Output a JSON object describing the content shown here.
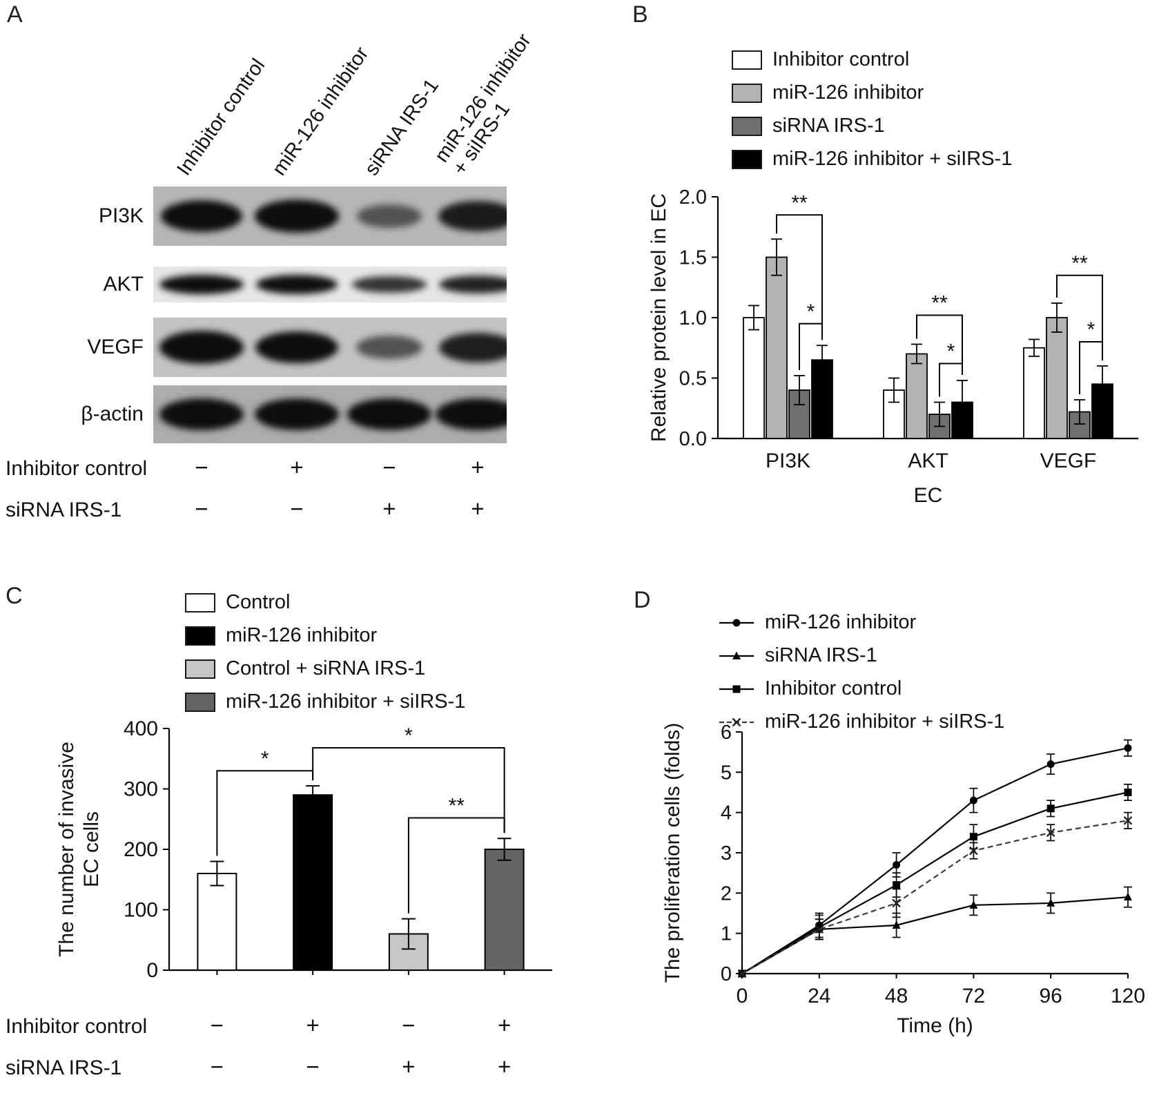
{
  "panels": {
    "A": {
      "label": "A",
      "lane_labels": [
        [
          "Inhibitor control"
        ],
        [
          "miR-126 inhibitor"
        ],
        [
          "siRNA IRS-1"
        ],
        [
          "miR-126 inhibitor",
          "+ siIRS-1"
        ]
      ],
      "blot_rows": [
        {
          "label": "PI3K",
          "bg": "#b6b6b6",
          "strip_h": 86,
          "bands": [
            0.92,
            1.0,
            0.38,
            0.82
          ]
        },
        {
          "label": "AKT",
          "bg": "#e6e6e6",
          "strip_h": 52,
          "bands": [
            1.0,
            0.92,
            0.7,
            0.8
          ]
        },
        {
          "label": "VEGF",
          "bg": "#c3c3c3",
          "strip_h": 86,
          "bands": [
            1.0,
            0.95,
            0.42,
            0.8
          ]
        },
        {
          "label": "β-actin",
          "bg": "#acacac",
          "strip_h": 84,
          "bands": [
            1.0,
            1.0,
            0.98,
            1.0
          ]
        }
      ],
      "condition_rows": [
        {
          "label": "Inhibitor control",
          "signs": [
            "−",
            "+",
            "−",
            "+"
          ]
        },
        {
          "label": "siRNA IRS-1",
          "signs": [
            "−",
            "−",
            "+",
            "+"
          ]
        }
      ]
    },
    "B": {
      "label": "B"
    },
    "C": {
      "label": "C"
    },
    "D": {
      "label": "D"
    }
  },
  "chart_data": [
    {
      "panel": "B",
      "type": "bar",
      "ylabel": "Relative protein level in EC",
      "xlabel": "EC",
      "ylim": [
        0,
        2.0
      ],
      "yticks": [
        0,
        0.5,
        1.0,
        1.5,
        2.0
      ],
      "categories": [
        "PI3K",
        "AKT",
        "VEGF"
      ],
      "legend_position": "top",
      "series": [
        {
          "name": "Inhibitor control",
          "color": "#ffffff",
          "values": [
            1.0,
            0.4,
            0.75
          ],
          "errors": [
            0.1,
            0.1,
            0.07
          ]
        },
        {
          "name": "miR-126 inhibitor",
          "color": "#b3b3b3",
          "values": [
            1.5,
            0.7,
            1.0
          ],
          "errors": [
            0.15,
            0.08,
            0.12
          ]
        },
        {
          "name": "siRNA IRS-1",
          "color": "#6f6f6f",
          "values": [
            0.4,
            0.2,
            0.22
          ],
          "errors": [
            0.12,
            0.1,
            0.1
          ]
        },
        {
          "name": "miR-126 inhibitor + siIRS-1",
          "color": "#000000",
          "values": [
            0.65,
            0.3,
            0.45
          ],
          "errors": [
            0.12,
            0.18,
            0.15
          ]
        }
      ],
      "significance": [
        {
          "category": 0,
          "from": 1,
          "to": 3,
          "label": "**",
          "y": 1.85
        },
        {
          "category": 0,
          "from": 2,
          "to": 3,
          "label": "*",
          "y": 0.95
        },
        {
          "category": 1,
          "from": 1,
          "to": 3,
          "label": "**",
          "y": 1.02
        },
        {
          "category": 1,
          "from": 2,
          "to": 3,
          "label": "*",
          "y": 0.62
        },
        {
          "category": 2,
          "from": 1,
          "to": 3,
          "label": "**",
          "y": 1.35
        },
        {
          "category": 2,
          "from": 2,
          "to": 3,
          "label": "*",
          "y": 0.8
        }
      ]
    },
    {
      "panel": "C",
      "type": "bar",
      "ylabel": "The number of invasive\nEC cells",
      "xlabel": "",
      "ylim": [
        0,
        400
      ],
      "yticks": [
        0,
        100,
        200,
        300,
        400
      ],
      "bars": [
        {
          "name": "Control",
          "color": "#ffffff",
          "value": 160,
          "error": 20
        },
        {
          "name": "miR-126 inhibitor",
          "color": "#000000",
          "value": 290,
          "error": 15
        },
        {
          "name": "Control + siRNA IRS-1",
          "color": "#c6c6c6",
          "value": 60,
          "error": 25
        },
        {
          "name": "miR-126 inhibitor + siIRS-1",
          "color": "#636363",
          "value": 200,
          "error": 18
        }
      ],
      "significance": [
        {
          "from": 0,
          "to": 1,
          "label": "*",
          "y": 330
        },
        {
          "from": 1,
          "to": 3,
          "label": "*",
          "y": 368
        },
        {
          "from": 2,
          "to": 3,
          "label": "**",
          "y": 252
        }
      ],
      "condition_rows": [
        {
          "label": "Inhibitor control",
          "signs": [
            "−",
            "+",
            "−",
            "+"
          ]
        },
        {
          "label": "siRNA IRS-1",
          "signs": [
            "−",
            "−",
            "+",
            "+"
          ]
        }
      ]
    },
    {
      "panel": "D",
      "type": "line",
      "ylabel": "The proliferation cells (folds)",
      "xlabel": "Time (h)",
      "x": [
        0,
        24,
        48,
        72,
        96,
        120
      ],
      "ylim": [
        0,
        6
      ],
      "yticks": [
        0,
        1,
        2,
        3,
        4,
        5,
        6
      ],
      "series": [
        {
          "name": "miR-126 inhibitor",
          "marker": "circle",
          "dashed": false,
          "values": [
            0,
            1.2,
            2.7,
            4.3,
            5.2,
            5.6
          ],
          "errors": [
            0.05,
            0.3,
            0.3,
            0.3,
            0.25,
            0.2
          ]
        },
        {
          "name": "siRNA IRS-1",
          "marker": "triangle",
          "dashed": false,
          "values": [
            0,
            1.1,
            1.2,
            1.7,
            1.75,
            1.9
          ],
          "errors": [
            0.05,
            0.25,
            0.3,
            0.25,
            0.25,
            0.25
          ]
        },
        {
          "name": "Inhibitor control",
          "marker": "square",
          "dashed": false,
          "values": [
            0,
            1.15,
            2.2,
            3.4,
            4.1,
            4.5
          ],
          "errors": [
            0.05,
            0.3,
            0.3,
            0.3,
            0.2,
            0.2
          ]
        },
        {
          "name": "miR-126 inhibitor + siIRS-1",
          "marker": "x",
          "dashed": true,
          "values": [
            0,
            1.1,
            1.75,
            3.05,
            3.5,
            3.8
          ],
          "errors": [
            0.05,
            0.25,
            0.35,
            0.2,
            0.2,
            0.2
          ]
        }
      ]
    }
  ]
}
